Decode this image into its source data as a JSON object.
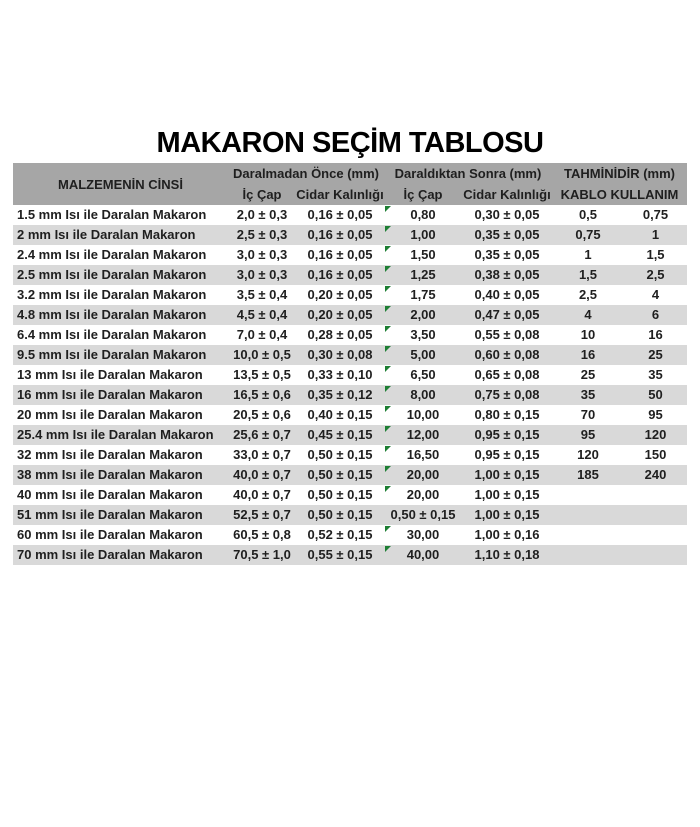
{
  "title": "MAKARON SEÇİM TABLOSU",
  "colors": {
    "header_bg": "#a6a6a6",
    "row_alt_bg": "#d9d9d9",
    "marker_green": "#1e7e34",
    "text": "#1f1f1f"
  },
  "table": {
    "header": {
      "material": "MALZEMENİN CİNSİ",
      "group_before": "Daralmadan Önce (mm)",
      "group_after": "Daraldıktan Sonra (mm)",
      "group_estimate": "TAHMİNİDİR (mm)",
      "sub_ic_cap_before": "İç Çap",
      "sub_cidar_before": "Cidar Kalınlığı",
      "sub_ic_cap_after": "İç Çap",
      "sub_cidar_after": "Cidar Kalınlığı",
      "sub_kablo": "KABLO KULLANIM"
    },
    "rows": [
      {
        "material": "1.5 mm Isı ile Daralan Makaron",
        "ic_cap_once": "2,0 ± 0,3",
        "cidar_once": "0,16 ± 0,05",
        "ic_cap_sonra": "0,80",
        "cidar_sonra": "0,30 ± 0,05",
        "kablo_min": "0,5",
        "kablo_max": "0,75",
        "marker": true
      },
      {
        "material": "2 mm Isı ile Daralan Makaron",
        "ic_cap_once": "2,5 ± 0,3",
        "cidar_once": "0,16 ± 0,05",
        "ic_cap_sonra": "1,00",
        "cidar_sonra": "0,35 ± 0,05",
        "kablo_min": "0,75",
        "kablo_max": "1",
        "marker": true
      },
      {
        "material": "2.4 mm Isı ile Daralan Makaron",
        "ic_cap_once": "3,0 ± 0,3",
        "cidar_once": "0,16 ± 0,05",
        "ic_cap_sonra": "1,50",
        "cidar_sonra": "0,35 ± 0,05",
        "kablo_min": "1",
        "kablo_max": "1,5",
        "marker": true
      },
      {
        "material": "2.5 mm Isı ile Daralan Makaron",
        "ic_cap_once": "3,0 ± 0,3",
        "cidar_once": "0,16 ± 0,05",
        "ic_cap_sonra": "1,25",
        "cidar_sonra": "0,38 ± 0,05",
        "kablo_min": "1,5",
        "kablo_max": "2,5",
        "marker": true
      },
      {
        "material": "3.2 mm Isı ile Daralan Makaron",
        "ic_cap_once": "3,5 ± 0,4",
        "cidar_once": "0,20 ± 0,05",
        "ic_cap_sonra": "1,75",
        "cidar_sonra": "0,40 ± 0,05",
        "kablo_min": "2,5",
        "kablo_max": "4",
        "marker": true
      },
      {
        "material": "4.8 mm Isı ile Daralan Makaron",
        "ic_cap_once": "4,5 ± 0,4",
        "cidar_once": "0,20 ± 0,05",
        "ic_cap_sonra": "2,00",
        "cidar_sonra": "0,47 ± 0,05",
        "kablo_min": "4",
        "kablo_max": "6",
        "marker": true
      },
      {
        "material": "6.4 mm Isı ile Daralan Makaron",
        "ic_cap_once": "7,0 ± 0,4",
        "cidar_once": "0,28 ± 0,05",
        "ic_cap_sonra": "3,50",
        "cidar_sonra": "0,55 ± 0,08",
        "kablo_min": "10",
        "kablo_max": "16",
        "marker": true
      },
      {
        "material": "9.5 mm Isı ile Daralan Makaron",
        "ic_cap_once": "10,0 ± 0,5",
        "cidar_once": "0,30 ± 0,08",
        "ic_cap_sonra": "5,00",
        "cidar_sonra": "0,60 ± 0,08",
        "kablo_min": "16",
        "kablo_max": "25",
        "marker": true
      },
      {
        "material": "13 mm Isı ile Daralan Makaron",
        "ic_cap_once": "13,5 ± 0,5",
        "cidar_once": "0,33 ± 0,10",
        "ic_cap_sonra": "6,50",
        "cidar_sonra": "0,65 ± 0,08",
        "kablo_min": "25",
        "kablo_max": "35",
        "marker": true
      },
      {
        "material": "16 mm Isı ile Daralan Makaron",
        "ic_cap_once": "16,5 ± 0,6",
        "cidar_once": "0,35 ± 0,12",
        "ic_cap_sonra": "8,00",
        "cidar_sonra": "0,75 ± 0,08",
        "kablo_min": "35",
        "kablo_max": "50",
        "marker": true
      },
      {
        "material": "20 mm Isı ile Daralan Makaron",
        "ic_cap_once": "20,5 ± 0,6",
        "cidar_once": "0,40 ± 0,15",
        "ic_cap_sonra": "10,00",
        "cidar_sonra": "0,80 ± 0,15",
        "kablo_min": "70",
        "kablo_max": "95",
        "marker": true
      },
      {
        "material": "25.4 mm Isı ile Daralan Makaron",
        "ic_cap_once": "25,6 ± 0,7",
        "cidar_once": "0,45 ± 0,15",
        "ic_cap_sonra": "12,00",
        "cidar_sonra": "0,95 ± 0,15",
        "kablo_min": "95",
        "kablo_max": "120",
        "marker": true
      },
      {
        "material": "32 mm Isı ile Daralan Makaron",
        "ic_cap_once": "33,0 ± 0,7",
        "cidar_once": "0,50 ± 0,15",
        "ic_cap_sonra": "16,50",
        "cidar_sonra": "0,95 ± 0,15",
        "kablo_min": "120",
        "kablo_max": "150",
        "marker": true
      },
      {
        "material": "38 mm Isı ile Daralan Makaron",
        "ic_cap_once": "40,0 ± 0,7",
        "cidar_once": "0,50 ± 0,15",
        "ic_cap_sonra": "20,00",
        "cidar_sonra": "1,00 ± 0,15",
        "kablo_min": "185",
        "kablo_max": "240",
        "marker": true
      },
      {
        "material": "40 mm Isı ile Daralan Makaron",
        "ic_cap_once": "40,0 ± 0,7",
        "cidar_once": "0,50 ± 0,15",
        "ic_cap_sonra": "20,00",
        "cidar_sonra": "1,00 ± 0,15",
        "kablo_min": "",
        "kablo_max": "",
        "marker": true
      },
      {
        "material": "51 mm Isı ile Daralan Makaron",
        "ic_cap_once": "52,5 ± 0,7",
        "cidar_once": "0,50 ± 0,15",
        "ic_cap_sonra": "0,50 ± 0,15",
        "cidar_sonra": "1,00 ± 0,15",
        "kablo_min": "",
        "kablo_max": "",
        "marker": false
      },
      {
        "material": "60 mm Isı ile Daralan Makaron",
        "ic_cap_once": "60,5 ± 0,8",
        "cidar_once": "0,52 ± 0,15",
        "ic_cap_sonra": "30,00",
        "cidar_sonra": "1,00 ± 0,16",
        "kablo_min": "",
        "kablo_max": "",
        "marker": true
      },
      {
        "material": "70 mm Isı ile Daralan Makaron",
        "ic_cap_once": "70,5 ± 1,0",
        "cidar_once": "0,55 ± 0,15",
        "ic_cap_sonra": "40,00",
        "cidar_sonra": "1,10 ± 0,18",
        "kablo_min": "",
        "kablo_max": "",
        "marker": true
      }
    ]
  }
}
